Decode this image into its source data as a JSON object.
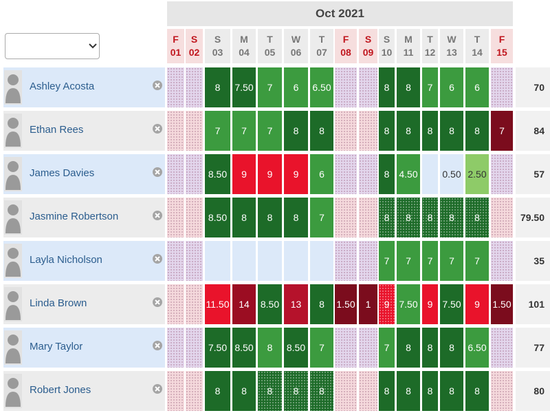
{
  "header": {
    "title": "Oct 2021"
  },
  "days": [
    {
      "letter": "F",
      "number": "01",
      "color": "#c0161e",
      "background": "#f6dede"
    },
    {
      "letter": "S",
      "number": "02",
      "color": "#c0161e",
      "background": "#f6dede"
    },
    {
      "letter": "S",
      "number": "03",
      "color": "#777777",
      "background": "#ececec"
    },
    {
      "letter": "M",
      "number": "04",
      "color": "#777777",
      "background": "#ececec"
    },
    {
      "letter": "T",
      "number": "05",
      "color": "#777777",
      "background": "#ececec"
    },
    {
      "letter": "W",
      "number": "06",
      "color": "#777777",
      "background": "#ececec"
    },
    {
      "letter": "T",
      "number": "07",
      "color": "#777777",
      "background": "#ececec"
    },
    {
      "letter": "F",
      "number": "08",
      "color": "#c0161e",
      "background": "#f6dede"
    },
    {
      "letter": "S",
      "number": "09",
      "color": "#c0161e",
      "background": "#f6dede"
    },
    {
      "letter": "S",
      "number": "10",
      "color": "#777777",
      "background": "#ececec"
    },
    {
      "letter": "M",
      "number": "11",
      "color": "#777777",
      "background": "#ececec"
    },
    {
      "letter": "T",
      "number": "12",
      "color": "#777777",
      "background": "#ececec"
    },
    {
      "letter": "W",
      "number": "13",
      "color": "#777777",
      "background": "#ececec"
    },
    {
      "letter": "T",
      "number": "14",
      "color": "#777777",
      "background": "#ececec"
    },
    {
      "letter": "F",
      "number": "15",
      "color": "#c0161e",
      "background": "#f6dede"
    }
  ],
  "rows": [
    {
      "name": "Ashley Acosta",
      "total": "70",
      "background": "#dce9f9",
      "cells": [
        {
          "color": "#e3d6ec",
          "dotted": true
        },
        {
          "color": "#e3d6ec",
          "dotted": true
        },
        {
          "text": "8",
          "color": "#1d6b28"
        },
        {
          "text": "7.50",
          "color": "#1d6b28"
        },
        {
          "text": "7",
          "color": "#3c9b3f"
        },
        {
          "text": "6",
          "color": "#3c9b3f"
        },
        {
          "text": "6.50",
          "color": "#3c9b3f"
        },
        {
          "color": "#e3d6ec",
          "dotted": true
        },
        {
          "color": "#e3d6ec",
          "dotted": true
        },
        {
          "text": "8",
          "color": "#1d6b28"
        },
        {
          "text": "8",
          "color": "#1d6b28"
        },
        {
          "text": "7",
          "color": "#3c9b3f"
        },
        {
          "text": "6",
          "color": "#3c9b3f"
        },
        {
          "text": "6",
          "color": "#3c9b3f"
        },
        {
          "color": "#e3d6ec",
          "dotted": true
        }
      ]
    },
    {
      "name": "Ethan Rees",
      "total": "84",
      "background": "#ececec",
      "cells": [
        {
          "color": "#f5d9dc",
          "dotted": true
        },
        {
          "color": "#f5d9dc",
          "dotted": true
        },
        {
          "text": "7",
          "color": "#3c9b3f"
        },
        {
          "text": "7",
          "color": "#3c9b3f"
        },
        {
          "text": "7",
          "color": "#3c9b3f"
        },
        {
          "text": "8",
          "color": "#1d6b28"
        },
        {
          "text": "8",
          "color": "#1d6b28"
        },
        {
          "color": "#f5d9dc",
          "dotted": true
        },
        {
          "color": "#f5d9dc",
          "dotted": true
        },
        {
          "text": "8",
          "color": "#1d6b28"
        },
        {
          "text": "8",
          "color": "#1d6b28"
        },
        {
          "text": "8",
          "color": "#1d6b28"
        },
        {
          "text": "8",
          "color": "#1d6b28"
        },
        {
          "text": "8",
          "color": "#1d6b28"
        },
        {
          "text": "7",
          "color": "#7b0c1d"
        }
      ]
    },
    {
      "name": "James Davies",
      "total": "57",
      "background": "#dce9f9",
      "cells": [
        {
          "color": "#e3d6ec",
          "dotted": true
        },
        {
          "color": "#e3d6ec",
          "dotted": true
        },
        {
          "text": "8.50",
          "color": "#1d6b28"
        },
        {
          "text": "9",
          "color": "#e9132b"
        },
        {
          "text": "9",
          "color": "#e9132b"
        },
        {
          "text": "9",
          "color": "#e9132b"
        },
        {
          "text": "6",
          "color": "#3c9b3f"
        },
        {
          "color": "#e3d6ec",
          "dotted": true
        },
        {
          "color": "#e3d6ec",
          "dotted": true
        },
        {
          "text": "8",
          "color": "#1d6b28"
        },
        {
          "text": "4.50",
          "color": "#3c9b3f"
        },
        {
          "color": "#dce9f9"
        },
        {
          "text": "0.50",
          "color": "#dce9f9"
        },
        {
          "text": "2.50",
          "color": "#8ecb68"
        },
        {
          "color": "#e3d6ec",
          "dotted": true
        }
      ]
    },
    {
      "name": "Jasmine Robertson",
      "total": "79.50",
      "background": "#ececec",
      "cells": [
        {
          "color": "#f5d9dc",
          "dotted": true
        },
        {
          "color": "#f5d9dc",
          "dotted": true
        },
        {
          "text": "8.50",
          "color": "#1d6b28"
        },
        {
          "text": "8",
          "color": "#1d6b28"
        },
        {
          "text": "8",
          "color": "#1d6b28"
        },
        {
          "text": "8",
          "color": "#1d6b28"
        },
        {
          "text": "7",
          "color": "#3c9b3f"
        },
        {
          "color": "#f5d9dc",
          "dotted": true
        },
        {
          "color": "#f5d9dc",
          "dotted": true
        },
        {
          "text": "8",
          "color": "#1d6b28",
          "dotted": true
        },
        {
          "text": "8",
          "color": "#1d6b28",
          "dotted": true
        },
        {
          "text": "8",
          "color": "#1d6b28",
          "dotted": true
        },
        {
          "text": "8",
          "color": "#1d6b28",
          "dotted": true
        },
        {
          "text": "8",
          "color": "#1d6b28",
          "dotted": true
        },
        {
          "color": "#f5d9dc",
          "dotted": true
        }
      ]
    },
    {
      "name": "Layla Nicholson",
      "total": "35",
      "background": "#dce9f9",
      "cells": [
        {
          "color": "#e3d6ec",
          "dotted": true
        },
        {
          "color": "#e3d6ec",
          "dotted": true
        },
        {
          "color": "#dce9f9"
        },
        {
          "color": "#dce9f9"
        },
        {
          "color": "#dce9f9"
        },
        {
          "color": "#dce9f9"
        },
        {
          "color": "#dce9f9"
        },
        {
          "color": "#e3d6ec",
          "dotted": true
        },
        {
          "color": "#e3d6ec",
          "dotted": true
        },
        {
          "text": "7",
          "color": "#3c9b3f"
        },
        {
          "text": "7",
          "color": "#3c9b3f"
        },
        {
          "text": "7",
          "color": "#3c9b3f"
        },
        {
          "text": "7",
          "color": "#3c9b3f"
        },
        {
          "text": "7",
          "color": "#3c9b3f"
        },
        {
          "color": "#e3d6ec",
          "dotted": true
        }
      ]
    },
    {
      "name": "Linda Brown",
      "total": "101",
      "background": "#ececec",
      "cells": [
        {
          "color": "#f5d9dc",
          "dotted": true
        },
        {
          "color": "#f5d9dc",
          "dotted": true
        },
        {
          "text": "11.50",
          "color": "#e9132b"
        },
        {
          "text": "14",
          "color": "#9b0d22"
        },
        {
          "text": "8.50",
          "color": "#1d6b28"
        },
        {
          "text": "13",
          "color": "#b5122b"
        },
        {
          "text": "8",
          "color": "#1d6b28"
        },
        {
          "text": "1.50",
          "color": "#7b0c1d"
        },
        {
          "text": "1",
          "color": "#7b0c1d"
        },
        {
          "text": "9",
          "color": "#e9132b",
          "dotted": true
        },
        {
          "text": "7.50",
          "color": "#3c9b3f"
        },
        {
          "text": "9",
          "color": "#e9132b"
        },
        {
          "text": "7.50",
          "color": "#1d6b28"
        },
        {
          "text": "9",
          "color": "#e9132b"
        },
        {
          "text": "1.50",
          "color": "#7b0c1d"
        }
      ]
    },
    {
      "name": "Mary Taylor",
      "total": "77",
      "background": "#dce9f9",
      "cells": [
        {
          "color": "#e3d6ec",
          "dotted": true
        },
        {
          "color": "#e3d6ec",
          "dotted": true
        },
        {
          "text": "7.50",
          "color": "#1d6b28"
        },
        {
          "text": "8.50",
          "color": "#1d6b28"
        },
        {
          "text": "8",
          "color": "#3c9b3f"
        },
        {
          "text": "8.50",
          "color": "#1d6b28"
        },
        {
          "text": "7",
          "color": "#3c9b3f"
        },
        {
          "color": "#e3d6ec",
          "dotted": true
        },
        {
          "color": "#e3d6ec",
          "dotted": true
        },
        {
          "text": "7",
          "color": "#3c9b3f"
        },
        {
          "text": "8",
          "color": "#1d6b28"
        },
        {
          "text": "8",
          "color": "#1d6b28"
        },
        {
          "text": "8",
          "color": "#1d6b28"
        },
        {
          "text": "6.50",
          "color": "#3c9b3f"
        },
        {
          "color": "#e3d6ec",
          "dotted": true
        }
      ]
    },
    {
      "name": "Robert Jones",
      "total": "80",
      "background": "#ececec",
      "cells": [
        {
          "color": "#f5d9dc",
          "dotted": true
        },
        {
          "color": "#f5d9dc",
          "dotted": true
        },
        {
          "text": "8",
          "color": "#1d6b28"
        },
        {
          "text": "8",
          "color": "#1d6b28"
        },
        {
          "text": "8",
          "color": "#1d6b28",
          "dotted": true
        },
        {
          "text": "8",
          "color": "#1d6b28",
          "dotted": true
        },
        {
          "text": "8",
          "color": "#1d6b28",
          "dotted": true
        },
        {
          "color": "#f5d9dc",
          "dotted": true
        },
        {
          "color": "#f5d9dc",
          "dotted": true
        },
        {
          "text": "8",
          "color": "#1d6b28"
        },
        {
          "text": "8",
          "color": "#1d6b28"
        },
        {
          "text": "8",
          "color": "#1d6b28"
        },
        {
          "text": "8",
          "color": "#1d6b28"
        },
        {
          "text": "8",
          "color": "#1d6b28"
        },
        {
          "color": "#f5d9dc",
          "dotted": true
        }
      ]
    }
  ]
}
